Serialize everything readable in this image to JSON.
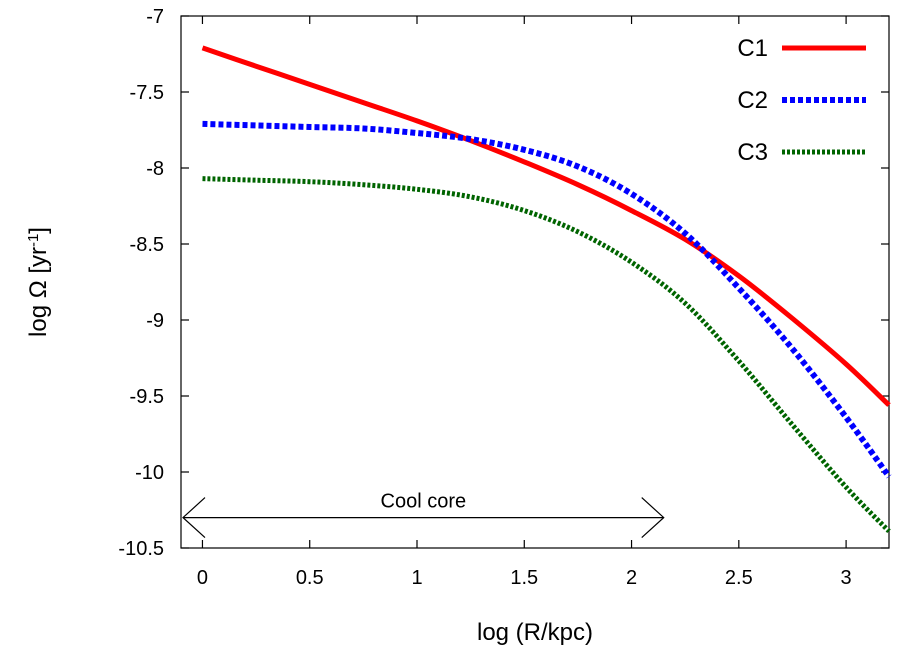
{
  "chart_data": {
    "type": "line",
    "title": "",
    "xlabel": "log (R/kpc)",
    "ylabel": {
      "base": "log Ω [yr",
      "sup": "-1",
      "end": "]"
    },
    "xlim": [
      -0.1,
      3.2
    ],
    "ylim": [
      -10.5,
      -7
    ],
    "xticks": [
      "0",
      "0.5",
      "1",
      "1.5",
      "2",
      "2.5",
      "3"
    ],
    "yticks": [
      "-7",
      "-7.5",
      "-8",
      "-8.5",
      "-9",
      "-9.5",
      "-10",
      "-10.5"
    ],
    "grid": false,
    "legend_position": "top-right",
    "series": [
      {
        "name": "C1",
        "color": "#ff0000",
        "style": "solid",
        "x": [
          0,
          0.25,
          0.5,
          0.75,
          1.0,
          1.25,
          1.5,
          1.75,
          2.0,
          2.25,
          2.5,
          2.75,
          3.0,
          3.2
        ],
        "y": [
          -7.21,
          -7.33,
          -7.45,
          -7.57,
          -7.69,
          -7.82,
          -7.96,
          -8.11,
          -8.28,
          -8.47,
          -8.71,
          -8.99,
          -9.29,
          -9.56
        ]
      },
      {
        "name": "C2",
        "color": "#0000ff",
        "style": "dashed",
        "x": [
          0,
          0.25,
          0.5,
          0.75,
          1.0,
          1.25,
          1.5,
          1.75,
          2.0,
          2.25,
          2.5,
          2.75,
          3.0,
          3.2
        ],
        "y": [
          -7.71,
          -7.72,
          -7.73,
          -7.74,
          -7.77,
          -7.81,
          -7.88,
          -7.99,
          -8.17,
          -8.43,
          -8.79,
          -9.19,
          -9.64,
          -10.03
        ]
      },
      {
        "name": "C3",
        "color": "#006400",
        "style": "dotted",
        "x": [
          0,
          0.25,
          0.5,
          0.75,
          1.0,
          1.25,
          1.5,
          1.75,
          2.0,
          2.25,
          2.5,
          2.75,
          3.0,
          3.2
        ],
        "y": [
          -8.07,
          -8.08,
          -8.09,
          -8.11,
          -8.14,
          -8.19,
          -8.28,
          -8.42,
          -8.62,
          -8.89,
          -9.27,
          -9.69,
          -10.1,
          -10.39
        ]
      }
    ],
    "annotations": [
      {
        "text": "Cool core",
        "x_from": -0.1,
        "x_to": 2.15,
        "y": -10.3
      }
    ]
  }
}
